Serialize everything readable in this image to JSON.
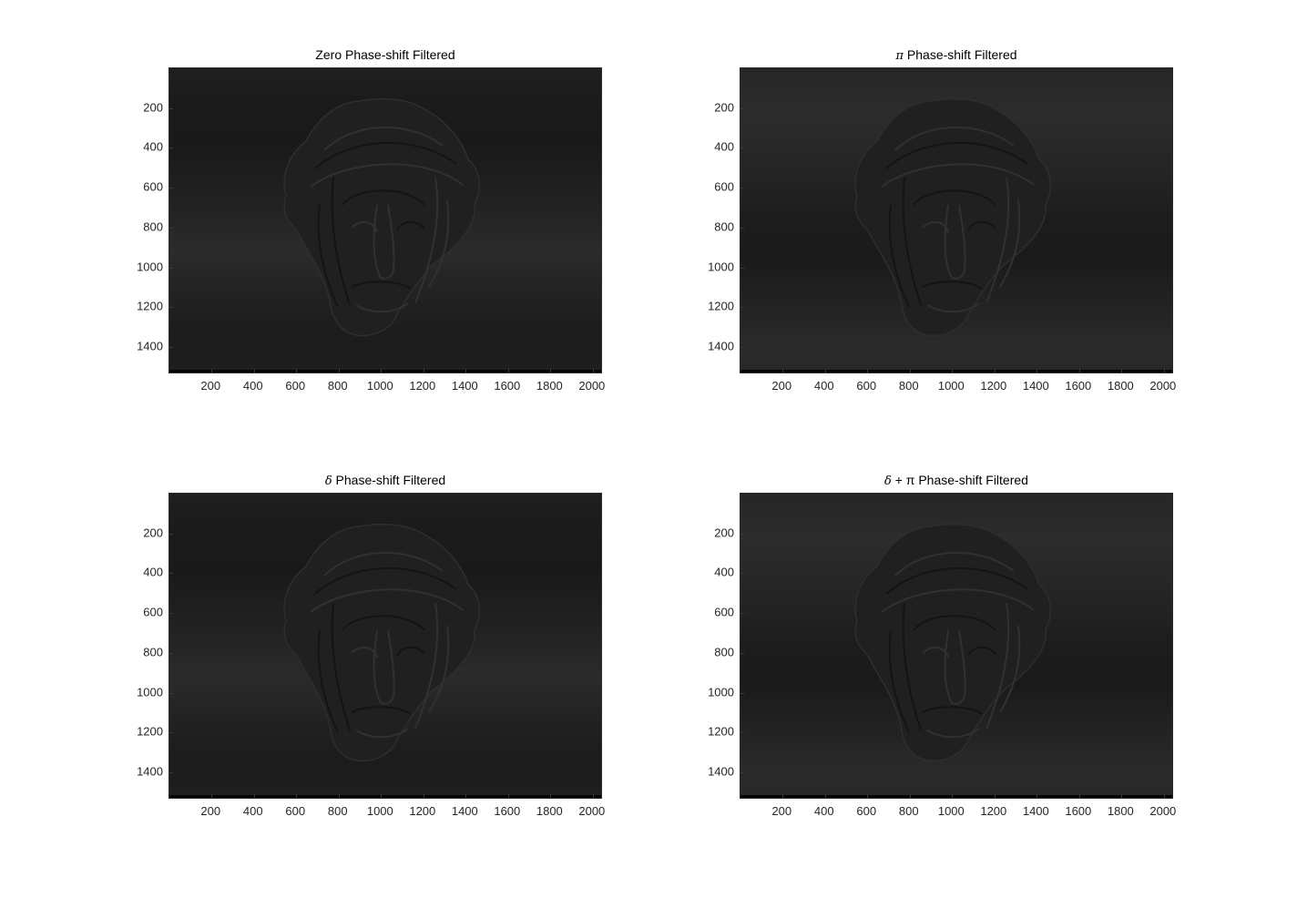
{
  "figure": {
    "background": "#ffffff",
    "axis_color": "#262626"
  },
  "chart_data": [
    {
      "type": "heatmap",
      "title_prefix": "",
      "title": "Zero Phase-shift Filtered",
      "colormap": "gray",
      "xlim": [
        1,
        2048
      ],
      "ylim": [
        1,
        1536
      ],
      "y_reversed": true,
      "xticks": [
        200,
        400,
        600,
        800,
        1000,
        1200,
        1400,
        1600,
        1800,
        2000
      ],
      "yticks": [
        200,
        400,
        600,
        800,
        1000,
        1200,
        1400
      ],
      "band_pattern": "dark-top",
      "xlabel": "",
      "ylabel": "",
      "grid": false
    },
    {
      "type": "heatmap",
      "title_prefix": "π",
      "title": " Phase-shift Filtered",
      "colormap": "gray",
      "xlim": [
        1,
        2048
      ],
      "ylim": [
        1,
        1536
      ],
      "y_reversed": true,
      "xticks": [
        200,
        400,
        600,
        800,
        1000,
        1200,
        1400,
        1600,
        1800,
        2000
      ],
      "yticks": [
        200,
        400,
        600,
        800,
        1000,
        1200,
        1400
      ],
      "band_pattern": "light-top",
      "xlabel": "",
      "ylabel": "",
      "grid": false
    },
    {
      "type": "heatmap",
      "title_prefix": "δ",
      "title": " Phase-shift Filtered",
      "colormap": "gray",
      "xlim": [
        1,
        2048
      ],
      "ylim": [
        1,
        1536
      ],
      "y_reversed": true,
      "xticks": [
        200,
        400,
        600,
        800,
        1000,
        1200,
        1400,
        1600,
        1800,
        2000
      ],
      "yticks": [
        200,
        400,
        600,
        800,
        1000,
        1200,
        1400
      ],
      "band_pattern": "dark-top",
      "xlabel": "",
      "ylabel": "",
      "grid": false
    },
    {
      "type": "heatmap",
      "title_prefix": "δ",
      "title": " + π Phase-shift Filtered",
      "colormap": "gray",
      "xlim": [
        1,
        2048
      ],
      "ylim": [
        1,
        1536
      ],
      "y_reversed": true,
      "xticks": [
        200,
        400,
        600,
        800,
        1000,
        1200,
        1400,
        1600,
        1800,
        2000
      ],
      "yticks": [
        200,
        400,
        600,
        800,
        1000,
        1200,
        1400
      ],
      "band_pattern": "light-top",
      "xlabel": "",
      "ylabel": "",
      "grid": false
    }
  ]
}
